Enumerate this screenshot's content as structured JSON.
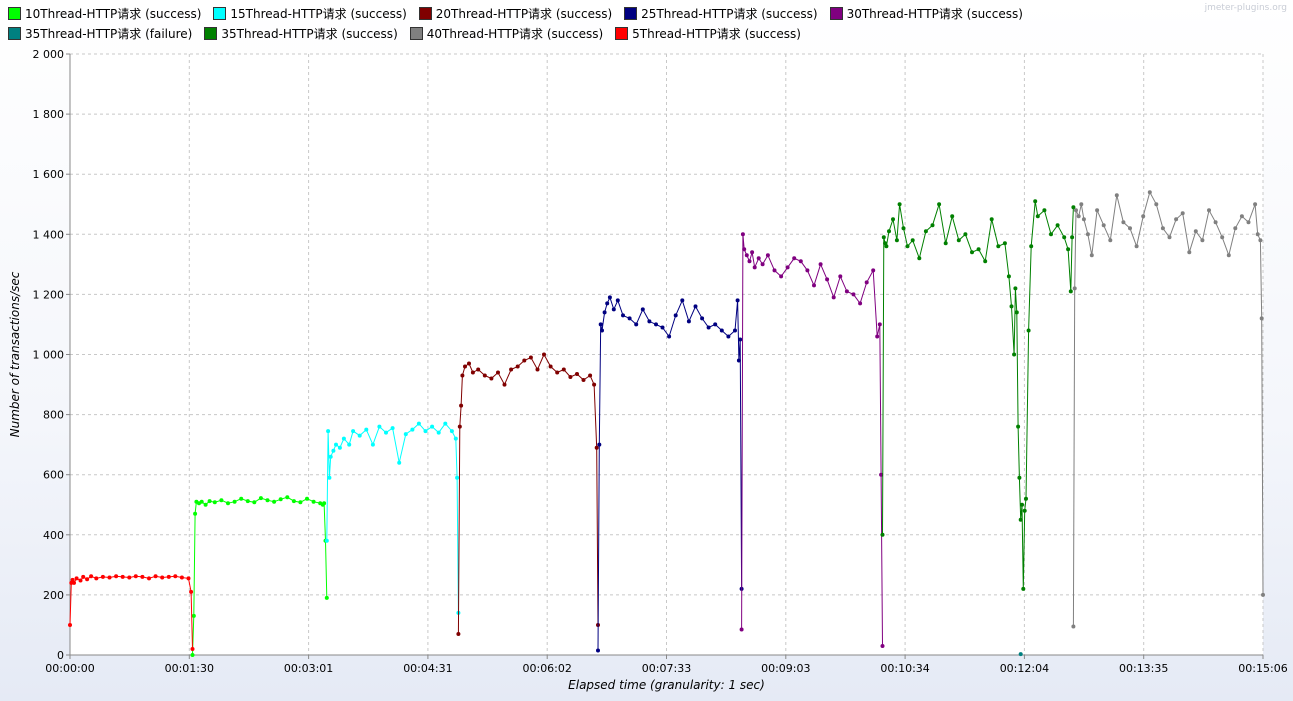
{
  "watermark": "jmeter-plugins.org",
  "chart_data": {
    "type": "line",
    "xlabel": "Elapsed time (granularity: 1 sec)",
    "ylabel": "Number of transactions/sec",
    "ylim": [
      0,
      2000
    ],
    "xlim_seconds": [
      0,
      906
    ],
    "grid": true,
    "legend_position": "top-left",
    "y_ticks": [
      "0",
      "200",
      "400",
      "600",
      "800",
      "1 000",
      "1 200",
      "1 400",
      "1 600",
      "1 800",
      "2 000"
    ],
    "x_ticks": [
      "00:00:00",
      "00:01:30",
      "00:03:01",
      "00:04:31",
      "00:06:02",
      "00:07:33",
      "00:09:03",
      "00:10:34",
      "00:12:04",
      "00:13:35",
      "00:15:06"
    ],
    "series": [
      {
        "name": "10Thread-HTTP请求 (success)",
        "color": "#00ff00",
        "x": [
          93,
          94,
          95,
          96,
          98,
          100,
          103,
          106,
          110,
          115,
          120,
          125,
          130,
          135,
          140,
          145,
          150,
          155,
          160,
          165,
          170,
          175,
          180,
          185,
          190,
          192,
          193,
          194,
          195
        ],
        "y": [
          0,
          130,
          470,
          510,
          505,
          510,
          500,
          512,
          508,
          515,
          505,
          510,
          520,
          512,
          508,
          522,
          515,
          510,
          518,
          525,
          512,
          508,
          520,
          510,
          505,
          500,
          505,
          380,
          190
        ]
      },
      {
        "name": "15Thread-HTTP请求 (success)",
        "color": "#00ffff",
        "x": [
          195,
          196,
          197,
          198,
          200,
          202,
          205,
          208,
          212,
          215,
          220,
          225,
          230,
          235,
          240,
          245,
          250,
          255,
          260,
          265,
          270,
          275,
          280,
          285,
          290,
          293,
          294,
          295
        ],
        "y": [
          380,
          745,
          590,
          660,
          680,
          700,
          690,
          720,
          700,
          745,
          730,
          750,
          700,
          760,
          740,
          755,
          640,
          735,
          750,
          770,
          745,
          760,
          740,
          770,
          745,
          720,
          590,
          140
        ]
      },
      {
        "name": "20Thread-HTTP请求 (success)",
        "color": "#800000",
        "x": [
          295,
          296,
          297,
          298,
          300,
          303,
          306,
          310,
          315,
          320,
          325,
          330,
          335,
          340,
          345,
          350,
          355,
          360,
          365,
          370,
          375,
          380,
          385,
          390,
          395,
          398,
          400,
          401
        ],
        "y": [
          70,
          760,
          830,
          930,
          960,
          970,
          940,
          950,
          930,
          920,
          940,
          900,
          950,
          960,
          980,
          990,
          950,
          1000,
          960,
          940,
          950,
          925,
          935,
          915,
          930,
          900,
          690,
          100
        ]
      },
      {
        "name": "25Thread-HTTP请求 (success)",
        "color": "#000080",
        "x": [
          401,
          402,
          403,
          404,
          406,
          408,
          410,
          413,
          416,
          420,
          425,
          430,
          435,
          440,
          445,
          450,
          455,
          460,
          465,
          470,
          475,
          480,
          485,
          490,
          495,
          500,
          505,
          507,
          508,
          509,
          510
        ],
        "y": [
          15,
          700,
          1100,
          1080,
          1140,
          1170,
          1190,
          1150,
          1180,
          1130,
          1120,
          1100,
          1150,
          1110,
          1100,
          1090,
          1060,
          1130,
          1180,
          1110,
          1160,
          1120,
          1090,
          1100,
          1080,
          1060,
          1080,
          1180,
          980,
          1050,
          220
        ]
      },
      {
        "name": "30Thread-HTTP请求 (success)",
        "color": "#800080",
        "x": [
          510,
          511,
          512,
          514,
          516,
          518,
          520,
          523,
          526,
          530,
          535,
          540,
          545,
          550,
          555,
          560,
          565,
          570,
          575,
          580,
          585,
          590,
          595,
          600,
          605,
          610,
          613,
          615,
          616,
          617
        ],
        "y": [
          85,
          1400,
          1350,
          1330,
          1310,
          1340,
          1290,
          1320,
          1300,
          1330,
          1280,
          1260,
          1290,
          1320,
          1310,
          1280,
          1230,
          1300,
          1250,
          1190,
          1260,
          1210,
          1200,
          1170,
          1240,
          1280,
          1060,
          1100,
          600,
          30
        ]
      },
      {
        "name": "35Thread-HTTP请求 (failure)",
        "color": "#008080",
        "x": [
          722
        ],
        "y": [
          3
        ]
      },
      {
        "name": "35Thread-HTTP请求 (success)",
        "color": "#008000",
        "x": [
          617,
          618,
          619,
          620,
          622,
          625,
          628,
          630,
          633,
          636,
          640,
          645,
          650,
          655,
          660,
          665,
          670,
          675,
          680,
          685,
          690,
          695,
          700,
          705,
          710,
          713,
          715,
          717,
          718,
          719,
          720,
          721,
          722,
          723,
          724,
          725,
          726,
          728,
          730,
          733,
          735,
          740,
          745,
          750,
          755,
          758,
          760,
          761,
          762
        ],
        "y": [
          400,
          1390,
          1370,
          1360,
          1410,
          1450,
          1380,
          1500,
          1420,
          1360,
          1380,
          1320,
          1410,
          1430,
          1500,
          1370,
          1460,
          1380,
          1400,
          1340,
          1350,
          1310,
          1450,
          1360,
          1370,
          1260,
          1160,
          1000,
          1220,
          1140,
          760,
          590,
          450,
          500,
          220,
          480,
          520,
          1080,
          1360,
          1510,
          1460,
          1480,
          1400,
          1430,
          1390,
          1350,
          1210,
          1390,
          1490
        ]
      },
      {
        "name": "40Thread-HTTP请求 (success)",
        "color": "#808080",
        "x": [
          762,
          763,
          764,
          766,
          768,
          770,
          773,
          776,
          780,
          785,
          790,
          795,
          800,
          805,
          810,
          815,
          820,
          825,
          830,
          835,
          840,
          845,
          850,
          855,
          860,
          865,
          870,
          875,
          880,
          885,
          890,
          895,
          900,
          902,
          904,
          905,
          906
        ],
        "y": [
          95,
          1220,
          1480,
          1460,
          1500,
          1450,
          1400,
          1330,
          1480,
          1430,
          1380,
          1530,
          1440,
          1420,
          1360,
          1460,
          1540,
          1500,
          1420,
          1390,
          1450,
          1470,
          1340,
          1410,
          1380,
          1480,
          1440,
          1390,
          1330,
          1420,
          1460,
          1440,
          1500,
          1400,
          1380,
          1120,
          200
        ]
      },
      {
        "name": "5Thread-HTTP请求 (success)",
        "color": "#ff0000",
        "x": [
          0,
          1,
          2,
          3,
          5,
          8,
          10,
          13,
          16,
          20,
          25,
          30,
          35,
          40,
          45,
          50,
          55,
          60,
          65,
          70,
          75,
          80,
          85,
          90,
          92,
          93
        ],
        "y": [
          100,
          240,
          250,
          240,
          255,
          248,
          260,
          252,
          262,
          255,
          260,
          258,
          262,
          260,
          258,
          262,
          260,
          255,
          262,
          258,
          260,
          262,
          258,
          255,
          210,
          20
        ]
      }
    ]
  }
}
